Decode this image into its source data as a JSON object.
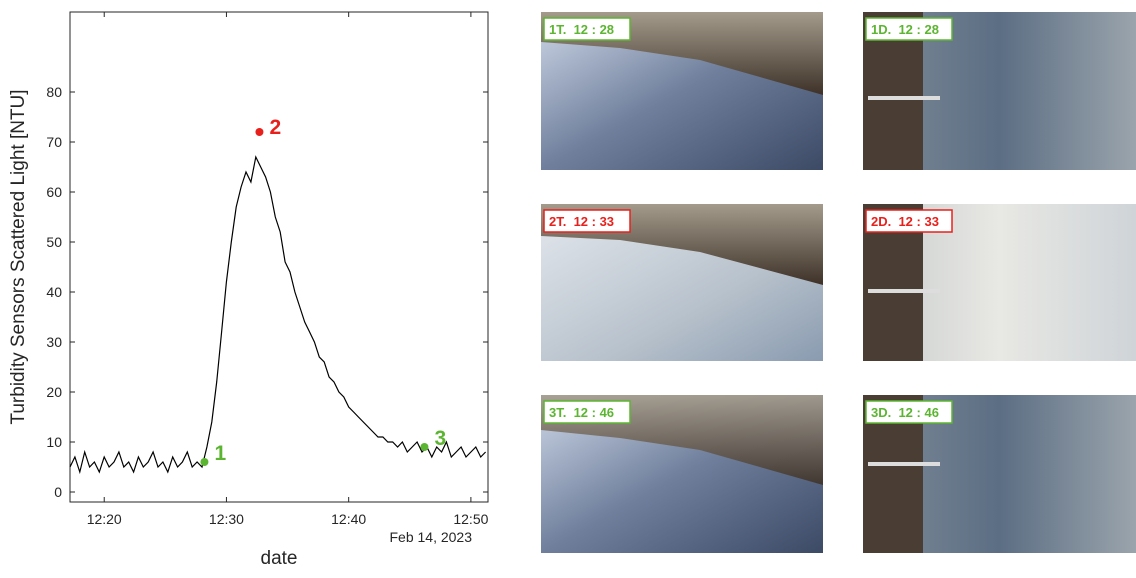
{
  "chart_data": {
    "type": "line",
    "ylabel": "Turbidity Sensors Scattered Light [NTU]",
    "xlabel": "date",
    "xsubtitle": "Feb 14, 2023",
    "color": "#000000",
    "x": [
      17.2,
      17.6,
      18.0,
      18.4,
      18.8,
      19.2,
      19.6,
      20.0,
      20.4,
      20.8,
      21.2,
      21.6,
      22.0,
      22.4,
      22.8,
      23.2,
      23.6,
      24.0,
      24.4,
      24.8,
      25.2,
      25.6,
      26.0,
      26.4,
      26.8,
      27.2,
      27.6,
      28.0,
      28.4,
      28.8,
      29.2,
      29.6,
      30.0,
      30.4,
      30.8,
      31.2,
      31.6,
      32.0,
      32.4,
      32.8,
      33.2,
      33.6,
      34.0,
      34.4,
      34.8,
      35.2,
      35.6,
      36.0,
      36.4,
      36.8,
      37.2,
      37.6,
      38.0,
      38.4,
      38.8,
      39.2,
      39.6,
      40.0,
      40.4,
      40.8,
      41.2,
      41.6,
      42.0,
      42.4,
      42.8,
      43.2,
      43.6,
      44.0,
      44.4,
      44.8,
      45.2,
      45.6,
      46.0,
      46.4,
      46.8,
      47.2,
      47.6,
      48.0,
      48.4,
      48.8,
      49.2,
      49.6,
      50.0,
      50.4,
      50.8,
      51.2
    ],
    "values": [
      5,
      7,
      4,
      8,
      5,
      6,
      4,
      7,
      5,
      6,
      8,
      5,
      6,
      4,
      7,
      5,
      6,
      8,
      5,
      6,
      4,
      7,
      5,
      6,
      8,
      5,
      6,
      5,
      9,
      14,
      22,
      32,
      42,
      50,
      57,
      61,
      64,
      62,
      67,
      65,
      63,
      60,
      55,
      52,
      46,
      44,
      40,
      37,
      34,
      32,
      30,
      27,
      26,
      23,
      22,
      20,
      19,
      17,
      16,
      15,
      14,
      13,
      12,
      11,
      11,
      10,
      10,
      9,
      10,
      8,
      9,
      10,
      8,
      9,
      7,
      9,
      8,
      10,
      7,
      8,
      9,
      7,
      8,
      9,
      7,
      8
    ],
    "xlim": [
      17.2,
      51.4
    ],
    "ylim": [
      -2,
      96
    ],
    "xticks": [
      {
        "value": 20,
        "label": "12:20"
      },
      {
        "value": 30,
        "label": "12:30"
      },
      {
        "value": 40,
        "label": "12:40"
      },
      {
        "value": 50,
        "label": "12:50"
      }
    ],
    "yticks": [
      0,
      10,
      20,
      30,
      40,
      50,
      60,
      70,
      80
    ],
    "annotations": [
      {
        "label": "1",
        "x": 28.2,
        "y": 6,
        "color": "#5cb531"
      },
      {
        "label": "2",
        "x": 32.7,
        "y": 72,
        "color": "#e8201c"
      },
      {
        "label": "3",
        "x": 46.2,
        "y": 9,
        "color": "#5cb531"
      }
    ]
  },
  "photos": [
    {
      "label": "1T.  12 : 28",
      "color": "#5cb531"
    },
    {
      "label": "1D.  12 : 28",
      "color": "#5cb531"
    },
    {
      "label": "2T.  12 : 33",
      "color": "#e8201c"
    },
    {
      "label": "2D.  12 : 33",
      "color": "#e8201c"
    },
    {
      "label": "3T.  12 : 46",
      "color": "#5cb531"
    },
    {
      "label": "3D.  12 : 46",
      "color": "#5cb531"
    }
  ]
}
